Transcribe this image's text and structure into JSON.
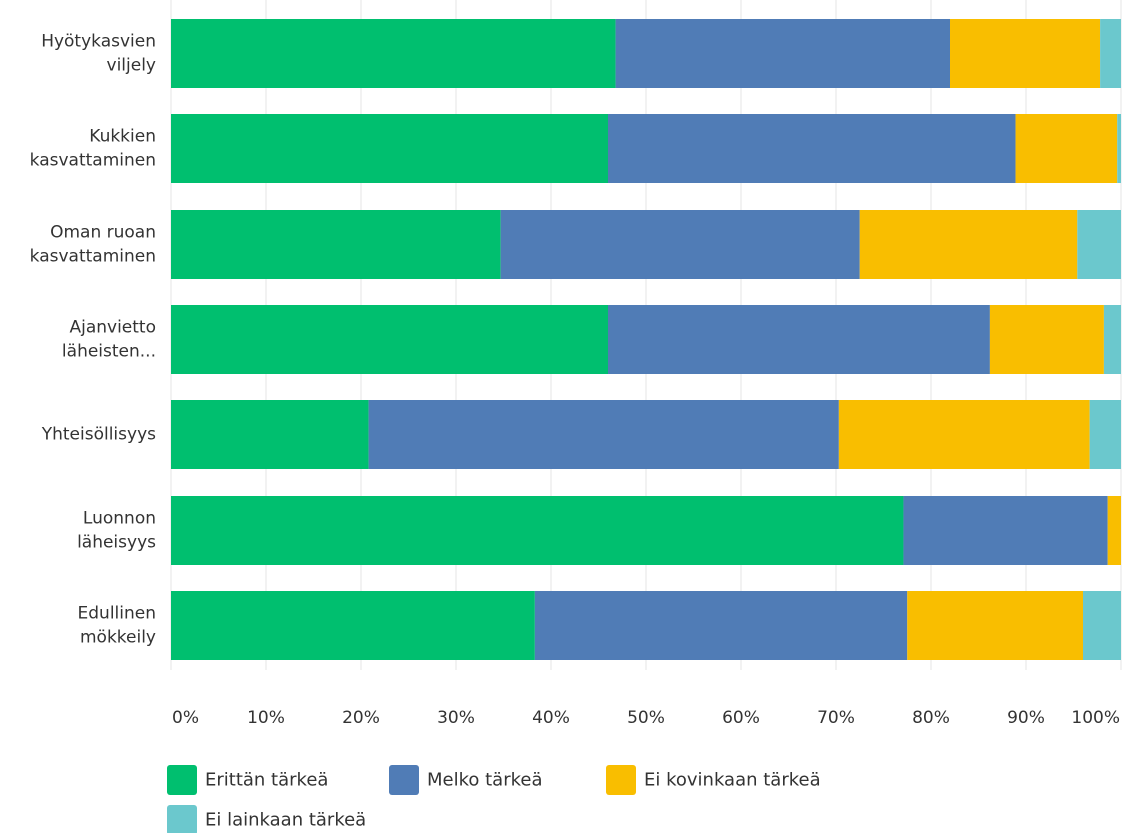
{
  "chart_data": {
    "type": "bar",
    "orientation": "horizontal",
    "stacked": true,
    "categories": [
      [
        "Hyötykasvien",
        "viljely"
      ],
      [
        "Kukkien",
        "kasvattaminen"
      ],
      [
        "Oman ruoan",
        "kasvattaminen"
      ],
      [
        "Ajanvietto",
        "läheisten..."
      ],
      [
        "Yhteisöllisyys"
      ],
      [
        "Luonnon",
        "läheisyys"
      ],
      [
        "Edullinen",
        "mökkeily"
      ]
    ],
    "series": [
      {
        "name": "Erittän tärkeä",
        "color": "#00bf6f",
        "values": [
          46.8,
          46.0,
          34.7,
          46.0,
          20.8,
          77.1,
          38.3
        ]
      },
      {
        "name": "Melko tärkeä",
        "color": "#507cb6",
        "values": [
          35.2,
          42.9,
          37.8,
          40.2,
          49.5,
          21.5,
          39.2
        ]
      },
      {
        "name": "Ei kovinkaan tärkeä",
        "color": "#f9be00",
        "values": [
          15.8,
          10.7,
          22.9,
          12.0,
          26.4,
          1.4,
          18.5
        ]
      },
      {
        "name": "Ei lainkaan tärkeä",
        "color": "#6bc8cd",
        "values": [
          2.2,
          0.4,
          4.6,
          1.8,
          3.3,
          0.0,
          4.0
        ]
      }
    ],
    "xlim": [
      0,
      100
    ],
    "xticks": [
      "0%",
      "10%",
      "20%",
      "30%",
      "40%",
      "50%",
      "60%",
      "70%",
      "80%",
      "90%",
      "100%"
    ],
    "grid": true,
    "legend_position": "bottom-left",
    "gridline_color": "#e4e4e4"
  }
}
